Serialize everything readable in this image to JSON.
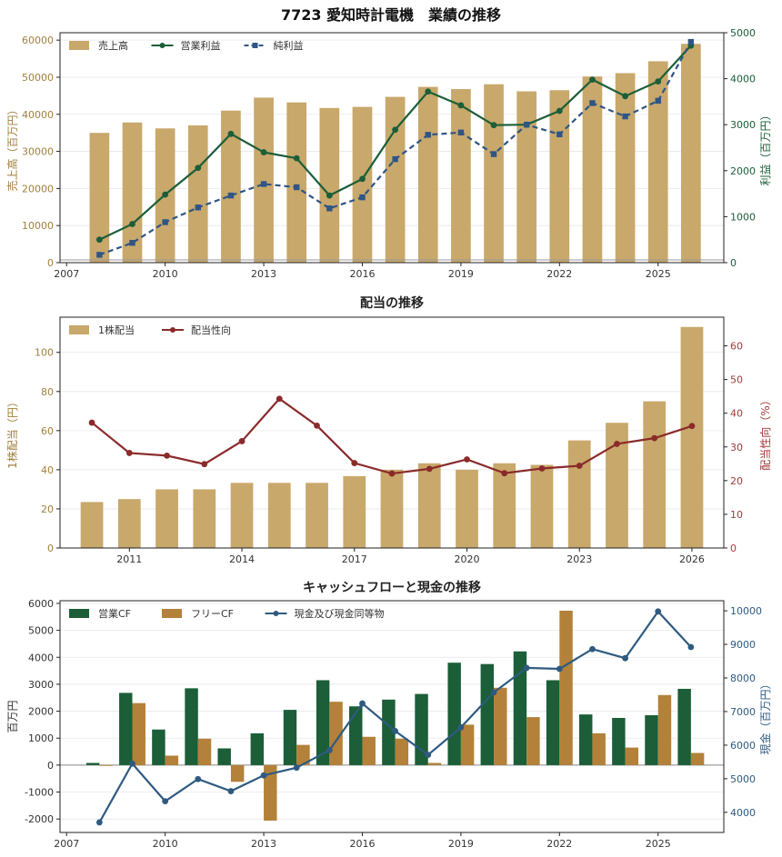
{
  "suptitle": "7723 愛知時計電機　業績の推移",
  "colors": {
    "gold": "#c8a86b",
    "green": "#1b5e38",
    "navy": "#2f5585",
    "maroon": "#8b2a2a",
    "fcf": "#b38139",
    "blue": "#2f5a80"
  },
  "chart_data": [
    {
      "type": "bar+line",
      "title": "",
      "ylabel_left": "売上高（百万円）",
      "ylabel_right": "利益（百万円）",
      "ylim_left": [
        0,
        62000
      ],
      "ylim_right": [
        0,
        5000
      ],
      "yticks_left": [
        0,
        10000,
        20000,
        30000,
        40000,
        50000,
        60000
      ],
      "yticks_right": [
        0,
        1000,
        2000,
        3000,
        4000,
        5000
      ],
      "xlim": [
        2006.8,
        2027.0
      ],
      "xticks": [
        2007,
        2010,
        2013,
        2016,
        2019,
        2022,
        2025
      ],
      "x": [
        2008,
        2009,
        2010,
        2011,
        2012,
        2013,
        2014,
        2015,
        2016,
        2017,
        2018,
        2019,
        2020,
        2021,
        2022,
        2023,
        2024,
        2025,
        2026
      ],
      "series": [
        {
          "name": "売上高",
          "kind": "bar",
          "axis": "left",
          "values": [
            35000,
            37800,
            36200,
            37000,
            41000,
            44500,
            43200,
            41700,
            42000,
            44700,
            47400,
            46800,
            48100,
            46200,
            46500,
            50200,
            51100,
            54300,
            59000
          ]
        },
        {
          "name": "営業利益",
          "kind": "line",
          "axis": "right",
          "values": [
            500,
            840,
            1480,
            2060,
            2800,
            2400,
            2270,
            1460,
            1820,
            2890,
            3720,
            3420,
            2990,
            3000,
            3300,
            3980,
            3620,
            3940,
            4720
          ]
        },
        {
          "name": "純利益",
          "kind": "dashed",
          "axis": "right",
          "values": [
            170,
            430,
            880,
            1200,
            1460,
            1710,
            1640,
            1180,
            1420,
            2250,
            2780,
            2830,
            2360,
            3000,
            2790,
            3470,
            3180,
            3520,
            4800
          ]
        }
      ],
      "legend": "top-left",
      "grid": true
    },
    {
      "type": "bar+line",
      "title": "配当の推移",
      "ylabel_left": "1株配当（円）",
      "ylabel_right": "配当性向（%）",
      "ylim_left": [
        0,
        118
      ],
      "ylim_right": [
        0,
        68.5
      ],
      "yticks_left": [
        0,
        20,
        40,
        60,
        80,
        100
      ],
      "yticks_right": [
        0,
        10,
        20,
        30,
        40,
        50,
        60
      ],
      "xlim": [
        2009.15,
        2026.85
      ],
      "xticks": [
        2011,
        2014,
        2017,
        2020,
        2023,
        2026
      ],
      "x": [
        2010,
        2011,
        2012,
        2013,
        2014,
        2015,
        2016,
        2017,
        2018,
        2019,
        2020,
        2021,
        2022,
        2023,
        2024,
        2025,
        2026
      ],
      "series": [
        {
          "name": "1株配当",
          "kind": "bar",
          "axis": "left",
          "values": [
            23.5,
            25,
            30,
            30,
            33.3,
            33.3,
            33.3,
            36.7,
            40,
            43.3,
            40,
            43.3,
            42.5,
            55,
            64,
            75,
            113
          ]
        },
        {
          "name": "配当性向",
          "kind": "line",
          "axis": "right",
          "values": [
            37.2,
            28.2,
            27.4,
            24.9,
            31.7,
            44.3,
            36.3,
            25.2,
            22.1,
            23.5,
            26.3,
            22.2,
            23.6,
            24.4,
            30.9,
            32.6,
            36.2
          ]
        }
      ],
      "legend": "top-left",
      "grid": true
    },
    {
      "type": "grouped-bar+line",
      "title": "キャッシュフローと現金の推移",
      "ylabel_left": "百万円",
      "ylabel_right": "現金（百万円）",
      "ylim_left": [
        -2500,
        6100
      ],
      "ylim_right": [
        3400,
        10300
      ],
      "yticks_left": [
        -2000,
        -1000,
        0,
        1000,
        2000,
        3000,
        4000,
        5000,
        6000
      ],
      "yticks_right": [
        4000,
        5000,
        6000,
        7000,
        8000,
        9000,
        10000
      ],
      "xlim": [
        2006.8,
        2027.0
      ],
      "xticks": [
        2007,
        2010,
        2013,
        2016,
        2019,
        2022,
        2025
      ],
      "x": [
        2008,
        2009,
        2010,
        2011,
        2012,
        2013,
        2014,
        2015,
        2016,
        2017,
        2018,
        2019,
        2020,
        2021,
        2022,
        2023,
        2024,
        2025,
        2026
      ],
      "series": [
        {
          "name": "営業CF",
          "kind": "bar",
          "axis": "left",
          "values": [
            80,
            2680,
            1320,
            2850,
            620,
            1180,
            2050,
            3150,
            2180,
            2430,
            2640,
            3800,
            3750,
            4220,
            3150,
            1880,
            1750,
            1850,
            2830
          ]
        },
        {
          "name": "フリーCF",
          "kind": "bar",
          "axis": "left",
          "values": [
            -30,
            2300,
            350,
            980,
            -620,
            -2060,
            750,
            2350,
            1050,
            980,
            80,
            1500,
            2870,
            1780,
            5730,
            1180,
            650,
            2600,
            450
          ]
        },
        {
          "name": "現金及び現金同等物",
          "kind": "line",
          "axis": "right",
          "values": [
            3700,
            5450,
            4330,
            4990,
            4630,
            5100,
            5330,
            5850,
            7240,
            6420,
            5710,
            6530,
            7570,
            8300,
            8270,
            8860,
            8590,
            9980,
            8920
          ]
        }
      ],
      "legend": "top-left",
      "grid": true
    }
  ]
}
